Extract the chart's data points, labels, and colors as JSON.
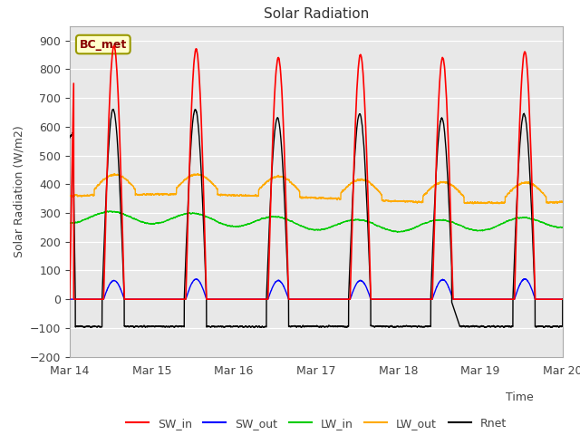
{
  "title": "Solar Radiation",
  "ylabel": "Solar Radiation (W/m2)",
  "ylim": [
    -200,
    950
  ],
  "yticks": [
    -200,
    -100,
    0,
    100,
    200,
    300,
    400,
    500,
    600,
    700,
    800,
    900
  ],
  "xlim": [
    0,
    6
  ],
  "xtick_labels": [
    "Mar 14",
    "Mar 15",
    "Mar 16",
    "Mar 17",
    "Mar 18",
    "Mar 19",
    "Mar 20"
  ],
  "xtick_positions": [
    0,
    1,
    2,
    3,
    4,
    5,
    6
  ],
  "colors": {
    "SW_in": "#ff0000",
    "SW_out": "#0000ff",
    "LW_in": "#00cc00",
    "LW_out": "#ffaa00",
    "Rnet": "#000000"
  },
  "bg_color": "#e8e8e8",
  "annotation_text": "BC_met",
  "annotation_bg": "#ffffcc",
  "annotation_border": "#999900"
}
